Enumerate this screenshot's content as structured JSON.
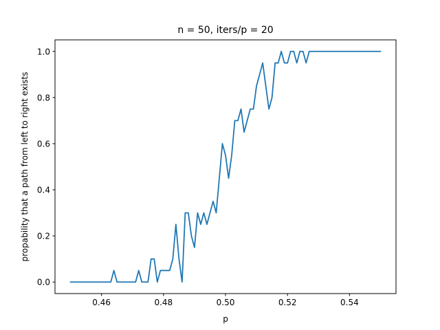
{
  "chart_data": {
    "type": "line",
    "title": "n = 50, iters/p = 20",
    "xlabel": "p",
    "ylabel": "propability that a path from left to right exists",
    "xlim": [
      0.445,
      0.555
    ],
    "ylim": [
      -0.05,
      1.05
    ],
    "xticks": [
      0.46,
      0.48,
      0.5,
      0.52,
      0.54
    ],
    "xtick_labels": [
      "0.46",
      "0.48",
      "0.50",
      "0.52",
      "0.54"
    ],
    "yticks": [
      0.0,
      0.2,
      0.4,
      0.6,
      0.8,
      1.0
    ],
    "ytick_labels": [
      "0.0",
      "0.2",
      "0.4",
      "0.6",
      "0.8",
      "1.0"
    ],
    "grid": false,
    "line_color": "#1f77b4",
    "series": [
      {
        "x": [
          0.45,
          0.451,
          0.452,
          0.453,
          0.454,
          0.455,
          0.456,
          0.457,
          0.458,
          0.459,
          0.46,
          0.461,
          0.462,
          0.463,
          0.464,
          0.465,
          0.466,
          0.467,
          0.468,
          0.469,
          0.47,
          0.471,
          0.472,
          0.473,
          0.474,
          0.475,
          0.476,
          0.477,
          0.478,
          0.479,
          0.48,
          0.481,
          0.482,
          0.483,
          0.484,
          0.485,
          0.486,
          0.487,
          0.488,
          0.489,
          0.49,
          0.491,
          0.492,
          0.493,
          0.494,
          0.495,
          0.496,
          0.497,
          0.498,
          0.499,
          0.5,
          0.501,
          0.502,
          0.503,
          0.504,
          0.505,
          0.506,
          0.507,
          0.508,
          0.509,
          0.51,
          0.511,
          0.512,
          0.513,
          0.514,
          0.515,
          0.516,
          0.517,
          0.518,
          0.519,
          0.52,
          0.521,
          0.522,
          0.523,
          0.524,
          0.525,
          0.526,
          0.527,
          0.528,
          0.529,
          0.53,
          0.531,
          0.532,
          0.533,
          0.534,
          0.535,
          0.536,
          0.537,
          0.538,
          0.539,
          0.54,
          0.541,
          0.542,
          0.543,
          0.544,
          0.545,
          0.546,
          0.547,
          0.548,
          0.549,
          0.55
        ],
        "y": [
          0,
          0,
          0,
          0,
          0,
          0,
          0,
          0,
          0,
          0,
          0,
          0,
          0,
          0,
          0.05,
          0,
          0,
          0,
          0,
          0,
          0,
          0,
          0.05,
          0,
          0,
          0,
          0.1,
          0.1,
          0,
          0.05,
          0.05,
          0.05,
          0.05,
          0.1,
          0.25,
          0.1,
          0,
          0.3,
          0.3,
          0.2,
          0.15,
          0.3,
          0.25,
          0.3,
          0.25,
          0.3,
          0.35,
          0.3,
          0.45,
          0.6,
          0.55,
          0.45,
          0.55,
          0.7,
          0.7,
          0.75,
          0.65,
          0.7,
          0.75,
          0.75,
          0.85,
          0.9,
          0.95,
          0.85,
          0.75,
          0.8,
          0.95,
          0.95,
          1.0,
          0.95,
          0.95,
          1.0,
          1.0,
          0.95,
          1.0,
          1.0,
          0.95,
          1.0,
          1.0,
          1.0,
          1.0,
          1.0,
          1.0,
          1.0,
          1.0,
          1.0,
          1.0,
          1.0,
          1.0,
          1.0,
          1.0,
          1.0,
          1.0,
          1.0,
          1.0,
          1.0,
          1.0,
          1.0,
          1.0,
          1.0,
          1.0
        ]
      }
    ]
  }
}
